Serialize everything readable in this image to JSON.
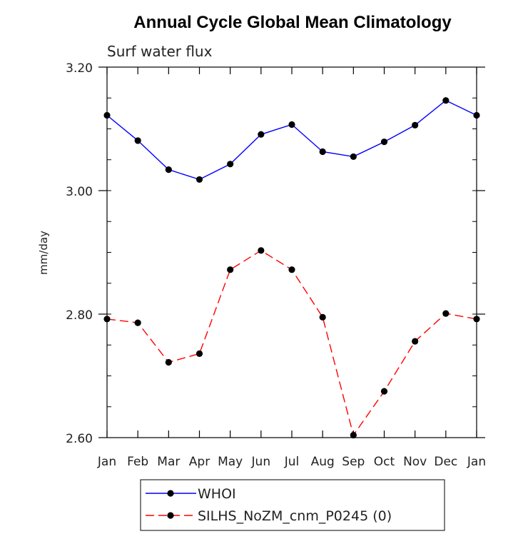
{
  "chart_data": {
    "type": "line",
    "title": "Annual Cycle Global Mean Climatology",
    "subtitle": "Surf water flux",
    "ylabel": "mm/day",
    "xlabel": "",
    "categories": [
      "Jan",
      "Feb",
      "Mar",
      "Apr",
      "May",
      "Jun",
      "Jul",
      "Aug",
      "Sep",
      "Oct",
      "Nov",
      "Dec",
      "Jan"
    ],
    "ylim": [
      2.6,
      3.2
    ],
    "yticks": [
      "2.60",
      "2.80",
      "3.00",
      "3.20"
    ],
    "ytick_values": [
      2.6,
      2.8,
      3.0,
      3.2
    ],
    "legend_position": "bottom",
    "series": [
      {
        "name": "WHOI",
        "color": "#0000ff",
        "dash": "solid",
        "values": [
          3.122,
          3.081,
          3.034,
          3.018,
          3.043,
          3.091,
          3.107,
          3.063,
          3.055,
          3.079,
          3.106,
          3.146,
          3.122
        ]
      },
      {
        "name": "SILHS_NoZM_cnm_P0245 (0)",
        "color": "#ff0000",
        "dash": "dashed",
        "values": [
          2.792,
          2.786,
          2.722,
          2.736,
          2.872,
          2.903,
          2.872,
          2.795,
          2.604,
          2.675,
          2.756,
          2.801,
          2.792
        ]
      }
    ]
  }
}
